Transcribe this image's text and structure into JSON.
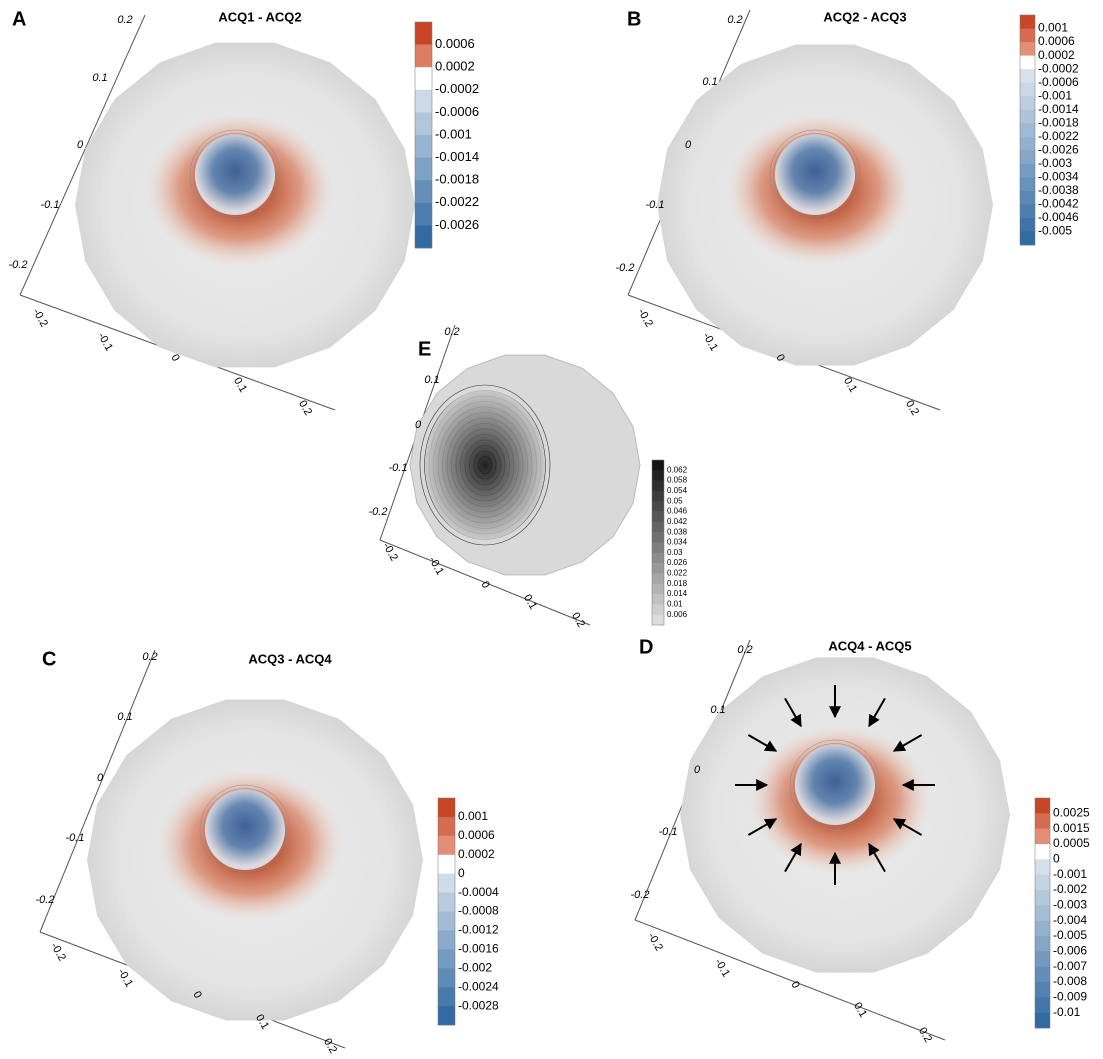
{
  "panels": [
    {
      "label": "A",
      "title": "ACQ1 - ACQ2",
      "colorbar": [
        "0.0006",
        "0.0002",
        "-0.0002",
        "-0.0006",
        "-0.001",
        "-0.0014",
        "-0.0018",
        "-0.0022",
        "-0.0026"
      ],
      "y_axis": [
        "0.2",
        "0.1",
        "0",
        "-0.1",
        "-0.2"
      ],
      "x_axis": [
        "-0.2",
        "-0.1",
        "0",
        "0.1",
        "0.2"
      ]
    },
    {
      "label": "B",
      "title": "ACQ2 - ACQ3",
      "colorbar": [
        "0.001",
        "0.0006",
        "0.0002",
        "-0.0002",
        "-0.0006",
        "-0.001",
        "-0.0014",
        "-0.0018",
        "-0.0022",
        "-0.0026",
        "-0.003",
        "-0.0034",
        "-0.0038",
        "-0.0042",
        "-0.0046",
        "-0.005"
      ],
      "y_axis": [
        "0.2",
        "0.1",
        "0",
        "-0.1",
        "-0.2"
      ],
      "x_axis": [
        "-0.2",
        "-0.1",
        "0",
        "0.1",
        "0.2"
      ]
    },
    {
      "label": "E",
      "colorbar": [
        "0.062",
        "0.058",
        "0.054",
        "0.05",
        "0.046",
        "0.042",
        "0.038",
        "0.034",
        "0.03",
        "0.026",
        "0.022",
        "0.018",
        "0.014",
        "0.01",
        "0.006"
      ],
      "y_axis": [
        "0.2",
        "0.1",
        "0",
        "-0.1",
        "-0.2"
      ],
      "x_axis": [
        "-0.2",
        "-0.1",
        "0",
        "0.1",
        "0.2"
      ]
    },
    {
      "label": "C",
      "title": "ACQ3 - ACQ4",
      "colorbar": [
        "0.001",
        "0.0006",
        "0.0002",
        "0",
        "-0.0004",
        "-0.0008",
        "-0.0012",
        "-0.0016",
        "-0.002",
        "-0.0024",
        "-0.0028"
      ],
      "y_axis": [
        "0.2",
        "0.1",
        "0",
        "-0.1",
        "-0.2"
      ],
      "x_axis": [
        "-0.2",
        "-0.1",
        "0",
        "0.1",
        "0.2"
      ]
    },
    {
      "label": "D",
      "title": "ACQ4 - ACQ5",
      "colorbar": [
        "0.0025",
        "0.0015",
        "0.0005",
        "0",
        "-0.001",
        "-0.002",
        "-0.003",
        "-0.004",
        "-0.005",
        "-0.006",
        "-0.007",
        "-0.008",
        "-0.009",
        "-0.01"
      ],
      "y_axis": [
        "0.2",
        "0.1",
        "0",
        "-0.1",
        "-0.2"
      ],
      "x_axis": [
        "-0.2",
        "-0.1",
        "0",
        "0.1",
        "0.2"
      ]
    }
  ]
}
